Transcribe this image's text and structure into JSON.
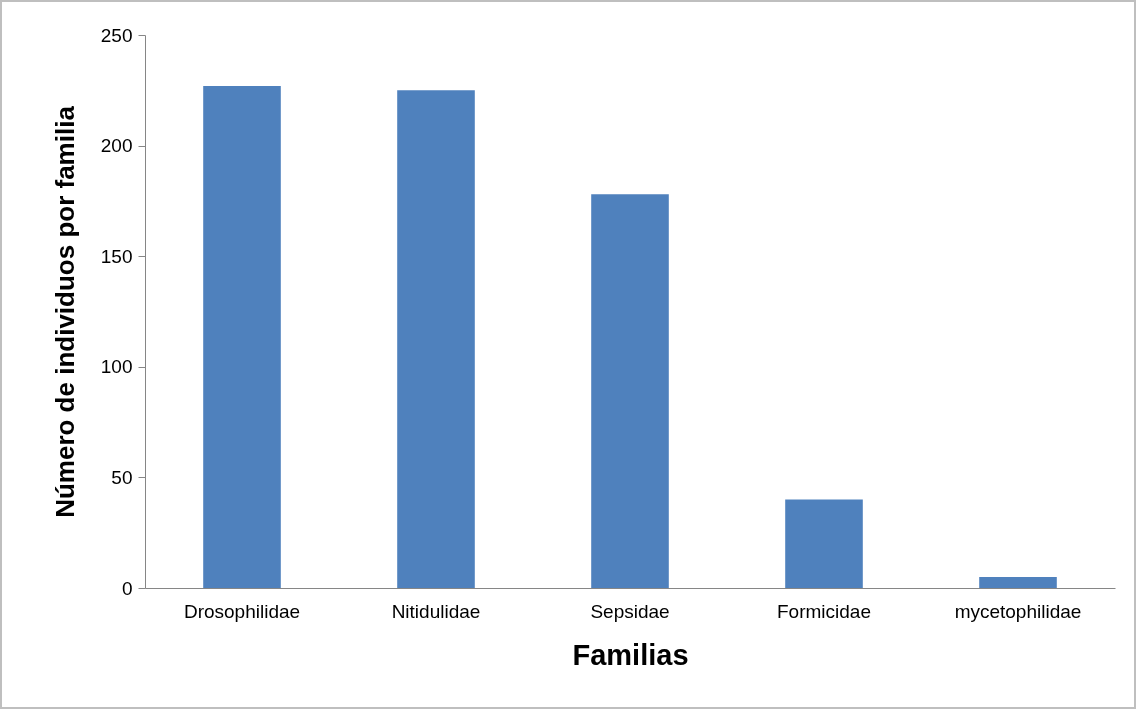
{
  "chart_data": {
    "type": "bar",
    "xlabel": "Familias",
    "ylabel": "Número de individuos por familia",
    "categories": [
      "Drosophilidae",
      "Nitidulidae",
      "Sepsidae",
      "Formicidae",
      "mycetophilidae"
    ],
    "values": [
      227,
      225,
      178,
      40,
      5
    ],
    "color": "#4f81bd",
    "ylim": [
      0,
      250
    ],
    "yticks": [
      0,
      50,
      100,
      150,
      200,
      250
    ],
    "grid": false
  }
}
